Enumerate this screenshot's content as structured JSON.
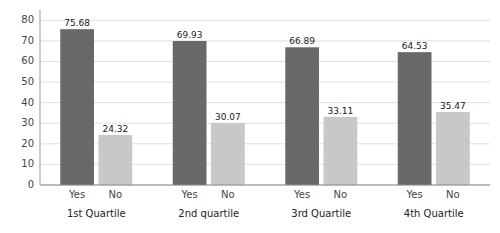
{
  "chart_data": {
    "type": "bar",
    "categories": [
      "1st Quartile",
      "2nd quartile",
      "3rd Quartile",
      "4th Quartile"
    ],
    "series": [
      {
        "name": "Yes",
        "color": "#696969",
        "values": [
          75.68,
          69.93,
          66.89,
          64.53
        ]
      },
      {
        "name": "No",
        "color": "#c8c8c8",
        "values": [
          24.32,
          30.07,
          33.11,
          35.47
        ]
      }
    ],
    "ylim": [
      0,
      85
    ],
    "yticks": [
      0,
      10,
      20,
      30,
      40,
      50,
      60,
      70,
      80
    ],
    "grid": true,
    "data_labels": true
  }
}
